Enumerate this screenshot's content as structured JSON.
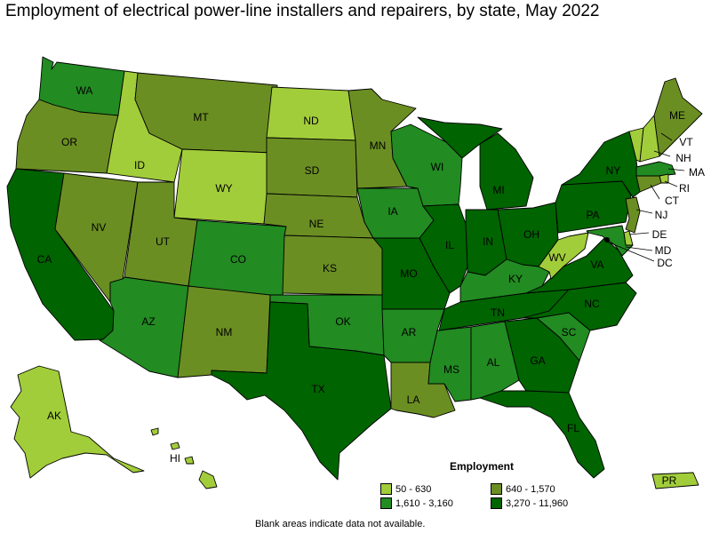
{
  "title": "Employment of electrical power-line installers and repairers, by state, May 2022",
  "legend": {
    "title": "Employment",
    "items": [
      {
        "label": "50 - 630",
        "color": "#a2cd3a"
      },
      {
        "label": "640 - 1,570",
        "color": "#6b8e23"
      },
      {
        "label": "1,610 - 3,160",
        "color": "#228b22"
      },
      {
        "label": "3,270 - 11,960",
        "color": "#006400"
      }
    ]
  },
  "note": "Blank areas indicate data not available.",
  "states": {
    "WA": {
      "label": "WA",
      "bin": 2
    },
    "OR": {
      "label": "OR",
      "bin": 1
    },
    "CA": {
      "label": "CA",
      "bin": 3
    },
    "ID": {
      "label": "ID",
      "bin": 0
    },
    "NV": {
      "label": "NV",
      "bin": 1
    },
    "MT": {
      "label": "MT",
      "bin": 1
    },
    "WY": {
      "label": "WY",
      "bin": 0
    },
    "UT": {
      "label": "UT",
      "bin": 1
    },
    "AZ": {
      "label": "AZ",
      "bin": 2
    },
    "CO": {
      "label": "CO",
      "bin": 2
    },
    "NM": {
      "label": "NM",
      "bin": 1
    },
    "ND": {
      "label": "ND",
      "bin": 0
    },
    "SD": {
      "label": "SD",
      "bin": 1
    },
    "NE": {
      "label": "NE",
      "bin": 1
    },
    "KS": {
      "label": "KS",
      "bin": 1
    },
    "OK": {
      "label": "OK",
      "bin": 2
    },
    "TX": {
      "label": "TX",
      "bin": 3
    },
    "MN": {
      "label": "MN",
      "bin": 1
    },
    "IA": {
      "label": "IA",
      "bin": 2
    },
    "MO": {
      "label": "MO",
      "bin": 3
    },
    "AR": {
      "label": "AR",
      "bin": 2
    },
    "LA": {
      "label": "LA",
      "bin": 1
    },
    "WI": {
      "label": "WI",
      "bin": 2
    },
    "IL": {
      "label": "IL",
      "bin": 3
    },
    "MI": {
      "label": "MI",
      "bin": 3
    },
    "IN": {
      "label": "IN",
      "bin": 3
    },
    "OH": {
      "label": "OH",
      "bin": 3
    },
    "KY": {
      "label": "KY",
      "bin": 2
    },
    "TN": {
      "label": "TN",
      "bin": 3
    },
    "MS": {
      "label": "MS",
      "bin": 2
    },
    "AL": {
      "label": "AL",
      "bin": 2
    },
    "GA": {
      "label": "GA",
      "bin": 3
    },
    "FL": {
      "label": "FL",
      "bin": 3
    },
    "SC": {
      "label": "SC",
      "bin": 2
    },
    "NC": {
      "label": "NC",
      "bin": 3
    },
    "VA": {
      "label": "VA",
      "bin": 3
    },
    "WV": {
      "label": "WV",
      "bin": 0
    },
    "PA": {
      "label": "PA",
      "bin": 3
    },
    "NY": {
      "label": "NY",
      "bin": 3
    },
    "VT": {
      "label": "VT",
      "bin": 0
    },
    "NH": {
      "label": "NH",
      "bin": 0
    },
    "ME": {
      "label": "ME",
      "bin": 1
    },
    "MA": {
      "label": "MA",
      "bin": 2
    },
    "RI": {
      "label": "RI",
      "bin": 0
    },
    "CT": {
      "label": "CT",
      "bin": 1
    },
    "NJ": {
      "label": "NJ",
      "bin": 1
    },
    "DE": {
      "label": "DE",
      "bin": 0
    },
    "MD": {
      "label": "MD",
      "bin": 2
    },
    "DC": {
      "label": "DC",
      "bin": 0
    },
    "AK": {
      "label": "AK",
      "bin": 0
    },
    "HI": {
      "label": "HI",
      "bin": 0
    },
    "PR": {
      "label": "PR",
      "bin": 0
    }
  }
}
